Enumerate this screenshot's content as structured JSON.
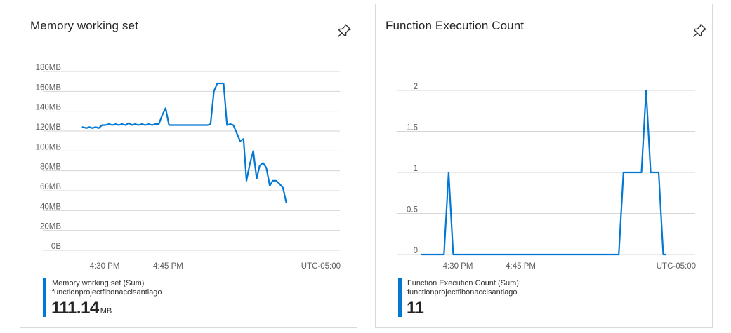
{
  "cards": [
    {
      "title": "Memory working set",
      "pin_icon": "pin-icon",
      "legend": {
        "series_name": "Memory working set (Sum)",
        "resource": "functionprojectfibonaccisantiago",
        "value": "111.14",
        "unit": "MB",
        "color": "#0078d4"
      }
    },
    {
      "title": "Function Execution Count",
      "pin_icon": "pin-icon",
      "legend": {
        "series_name": "Function Execution Count (Sum)",
        "resource": "functionprojectfibonaccisantiago",
        "value": "11",
        "unit": "",
        "color": "#0078d4"
      }
    }
  ],
  "chart_data": [
    {
      "type": "line",
      "title": "Memory working set",
      "y_ticks": [
        "0B",
        "20MB",
        "40MB",
        "60MB",
        "80MB",
        "100MB",
        "120MB",
        "140MB",
        "160MB",
        "180MB"
      ],
      "ylim": [
        0,
        180
      ],
      "y_unit": "MB",
      "x_tick_labels": [
        "4:30 PM",
        "4:45 PM"
      ],
      "timezone_label": "UTC-05:00",
      "x_range_minutes": [
        -6,
        42
      ],
      "x_tick_minutes": [
        0,
        15
      ],
      "grid": true,
      "series": [
        {
          "name": "Memory working set (Sum)",
          "color": "#0078d4",
          "points": [
            [
              -5.2,
              124
            ],
            [
              -4.3,
              123
            ],
            [
              -3.6,
              124
            ],
            [
              -2.9,
              123
            ],
            [
              -2.1,
              124
            ],
            [
              -1.4,
              123
            ],
            [
              -0.6,
              126
            ],
            [
              0.2,
              126
            ],
            [
              1,
              127
            ],
            [
              1.8,
              126
            ],
            [
              2.6,
              127
            ],
            [
              3.3,
              126
            ],
            [
              4.1,
              127
            ],
            [
              4.9,
              126
            ],
            [
              5.7,
              128
            ],
            [
              6.5,
              126
            ],
            [
              7.2,
              127
            ],
            [
              8,
              126
            ],
            [
              8.8,
              127
            ],
            [
              9.6,
              126
            ],
            [
              10.4,
              127
            ],
            [
              11.2,
              126
            ],
            [
              12,
              127
            ],
            [
              12.8,
              127
            ],
            [
              13.6,
              136
            ],
            [
              14.4,
              143
            ],
            [
              15.2,
              126
            ],
            [
              16.4,
              126
            ],
            [
              17.6,
              126
            ],
            [
              18.7,
              126
            ],
            [
              19.9,
              126
            ],
            [
              21.1,
              126
            ],
            [
              22.3,
              126
            ],
            [
              23.5,
              126
            ],
            [
              24.3,
              126
            ],
            [
              25,
              127
            ],
            [
              25.8,
              160
            ],
            [
              26.6,
              168
            ],
            [
              28.1,
              168
            ],
            [
              28.9,
              126
            ],
            [
              29.7,
              127
            ],
            [
              30.4,
              126
            ],
            [
              31.2,
              118
            ],
            [
              32,
              110
            ],
            [
              32.8,
              112
            ],
            [
              33.5,
              70
            ],
            [
              34.3,
              87
            ],
            [
              35.1,
              100
            ],
            [
              35.9,
              72
            ],
            [
              36.6,
              85
            ],
            [
              37.4,
              88
            ],
            [
              38.2,
              83
            ],
            [
              39,
              65
            ],
            [
              39.7,
              70
            ],
            [
              40.5,
              70
            ],
            [
              41.3,
              67
            ],
            [
              42.1,
              63
            ],
            [
              42.9,
              48
            ]
          ]
        }
      ]
    },
    {
      "type": "line",
      "title": "Function Execution Count",
      "y_ticks": [
        "0",
        "0.5",
        "1",
        "1.5",
        "2"
      ],
      "ylim": [
        0,
        2
      ],
      "x_tick_labels": [
        "4:30 PM",
        "4:45 PM"
      ],
      "timezone_label": "UTC-05:00",
      "x_range_minutes": [
        -6,
        42
      ],
      "x_tick_minutes": [
        0,
        15
      ],
      "grid": true,
      "series": [
        {
          "name": "Function Execution Count (Sum)",
          "color": "#0078d4",
          "points": [
            [
              -8.6,
              0
            ],
            [
              -3.3,
              0
            ],
            [
              -2.2,
              1
            ],
            [
              -1.1,
              0
            ],
            [
              38.4,
              0
            ],
            [
              39.5,
              1
            ],
            [
              43.8,
              1
            ],
            [
              44.9,
              2
            ],
            [
              46,
              1
            ],
            [
              47.9,
              1
            ],
            [
              49,
              0
            ],
            [
              49.6,
              0
            ]
          ]
        }
      ]
    }
  ]
}
